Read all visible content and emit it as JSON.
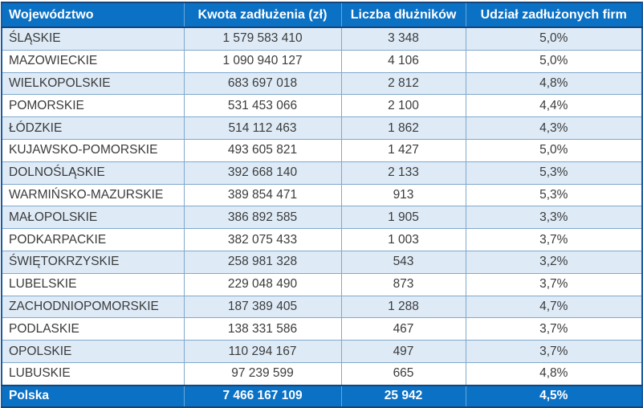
{
  "chart_data": {
    "type": "table",
    "title": "",
    "columns": [
      {
        "label": "Województwo",
        "align": "left"
      },
      {
        "label": "Kwota zadłużenia (zł)",
        "align": "center"
      },
      {
        "label": "Liczba dłużników",
        "align": "center"
      },
      {
        "label": "Udział zadłużonych firm",
        "align": "center"
      }
    ],
    "rows": [
      [
        "ŚLĄSKIE",
        "1 579 583 410",
        "3 348",
        "5,0%"
      ],
      [
        "MAZOWIECKIE",
        "1 090 940 127",
        "4 106",
        "5,0%"
      ],
      [
        "WIELKOPOLSKIE",
        "683 697 018",
        "2 812",
        "4,8%"
      ],
      [
        "POMORSKIE",
        "531 453 066",
        "2 100",
        "4,4%"
      ],
      [
        "ŁÓDZKIE",
        "514 112 463",
        "1 862",
        "4,3%"
      ],
      [
        "KUJAWSKO-POMORSKIE",
        "493 605 821",
        "1 427",
        "5,0%"
      ],
      [
        "DOLNOŚLĄSKIE",
        "392 668 140",
        "2 133",
        "5,3%"
      ],
      [
        "WARMIŃSKO-MAZURSKIE",
        "389 854 471",
        "913",
        "5,3%"
      ],
      [
        "MAŁOPOLSKIE",
        "386 892 585",
        "1 905",
        "3,3%"
      ],
      [
        "PODKARPACKIE",
        "382 075 433",
        "1 003",
        "3,7%"
      ],
      [
        "ŚWIĘTOKRZYSKIE",
        "258 981 328",
        "543",
        "3,2%"
      ],
      [
        "LUBELSKIE",
        "229 048 490",
        "873",
        "3,7%"
      ],
      [
        "ZACHODNIOPOMORSKIE",
        "187 389 405",
        "1 288",
        "4,7%"
      ],
      [
        "PODLASKIE",
        "138 331 586",
        "467",
        "3,7%"
      ],
      [
        "OPOLSKIE",
        "110 294 167",
        "497",
        "3,7%"
      ],
      [
        "LUBUSKIE",
        "97 239 599",
        "665",
        "4,8%"
      ]
    ],
    "footer": [
      "Polska",
      "7 466 167 109",
      "25 942",
      "4,5%"
    ],
    "cell_semantics": [
      "voivodeship",
      "debt-amount",
      "debtors-count",
      "indebted-firms-share"
    ]
  },
  "colors": {
    "header_bg": "#0b71c4",
    "footer_bg": "#0b71c4",
    "header_text": "#ffffff",
    "row_alt_bg": "#deebf7",
    "row_bg": "#ffffff",
    "grid_line": "#7fa8cd",
    "outer_border": "#15457b",
    "body_text": "#3b3b3b"
  }
}
